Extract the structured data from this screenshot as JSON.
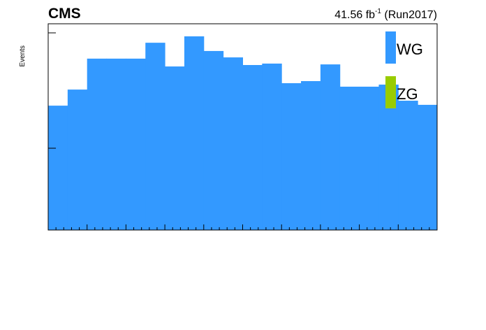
{
  "chart_data": {
    "type": "stacked-histogram",
    "title": "CMS",
    "lumi_label": [
      "41.56 fb",
      "-1",
      " (Run2017)"
    ],
    "y_label": "Events",
    "ylim": [
      0,
      100
    ],
    "series": [
      {
        "name": "ZG",
        "color": "#99cc00",
        "values": [
          0,
          0,
          0,
          0,
          0,
          0,
          0,
          0,
          0,
          0,
          0,
          0,
          0,
          0,
          0,
          0,
          0,
          0,
          0,
          0
        ]
      },
      {
        "name": "WG",
        "color": "#3399ff",
        "values": [
          60.3,
          68.1,
          83.1,
          83.1,
          83.1,
          90.8,
          79.3,
          93.9,
          86.8,
          83.7,
          80.0,
          80.7,
          71.2,
          72.2,
          80.3,
          69.5,
          69.5,
          70.5,
          62.7,
          60.7
        ]
      }
    ]
  }
}
